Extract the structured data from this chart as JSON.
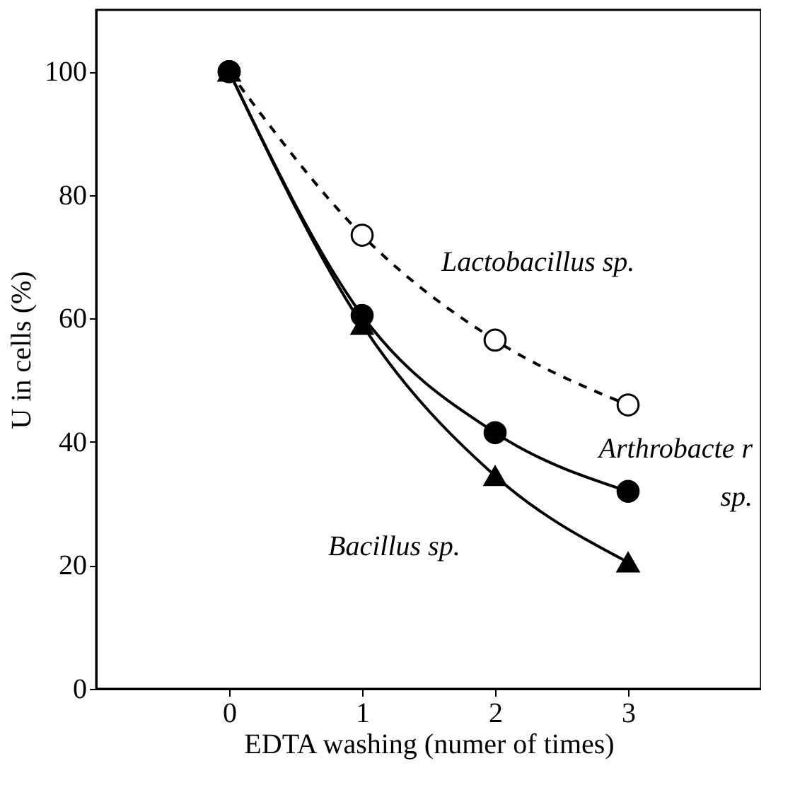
{
  "chart_data": {
    "type": "line",
    "xlabel": "EDTA washing (numer of times)",
    "ylabel": "U in cells (%)",
    "x": [
      0,
      1,
      2,
      3
    ],
    "series": [
      {
        "name": "Lactobacillus sp.",
        "color": "#000000",
        "values": [
          100,
          73.5,
          56.5,
          46
        ],
        "line_style": "dashed",
        "marker": "circle"
      },
      {
        "name": "Arthrobacte r sp.",
        "color": "#000000",
        "values": [
          100,
          60.5,
          41.5,
          32
        ],
        "line_style": "solid",
        "marker": "circle"
      },
      {
        "name": "Bacillus sp.",
        "color": "#000000",
        "values": [
          100,
          59,
          34.5,
          20.5
        ],
        "line_style": "solid",
        "marker": "triangle"
      }
    ],
    "xlim": [
      -1,
      4
    ],
    "xticks": [
      0,
      1,
      2,
      3
    ],
    "ylim": [
      0,
      110
    ],
    "yticks": [
      0,
      20,
      40,
      60,
      80,
      100
    ],
    "grid": false
  }
}
